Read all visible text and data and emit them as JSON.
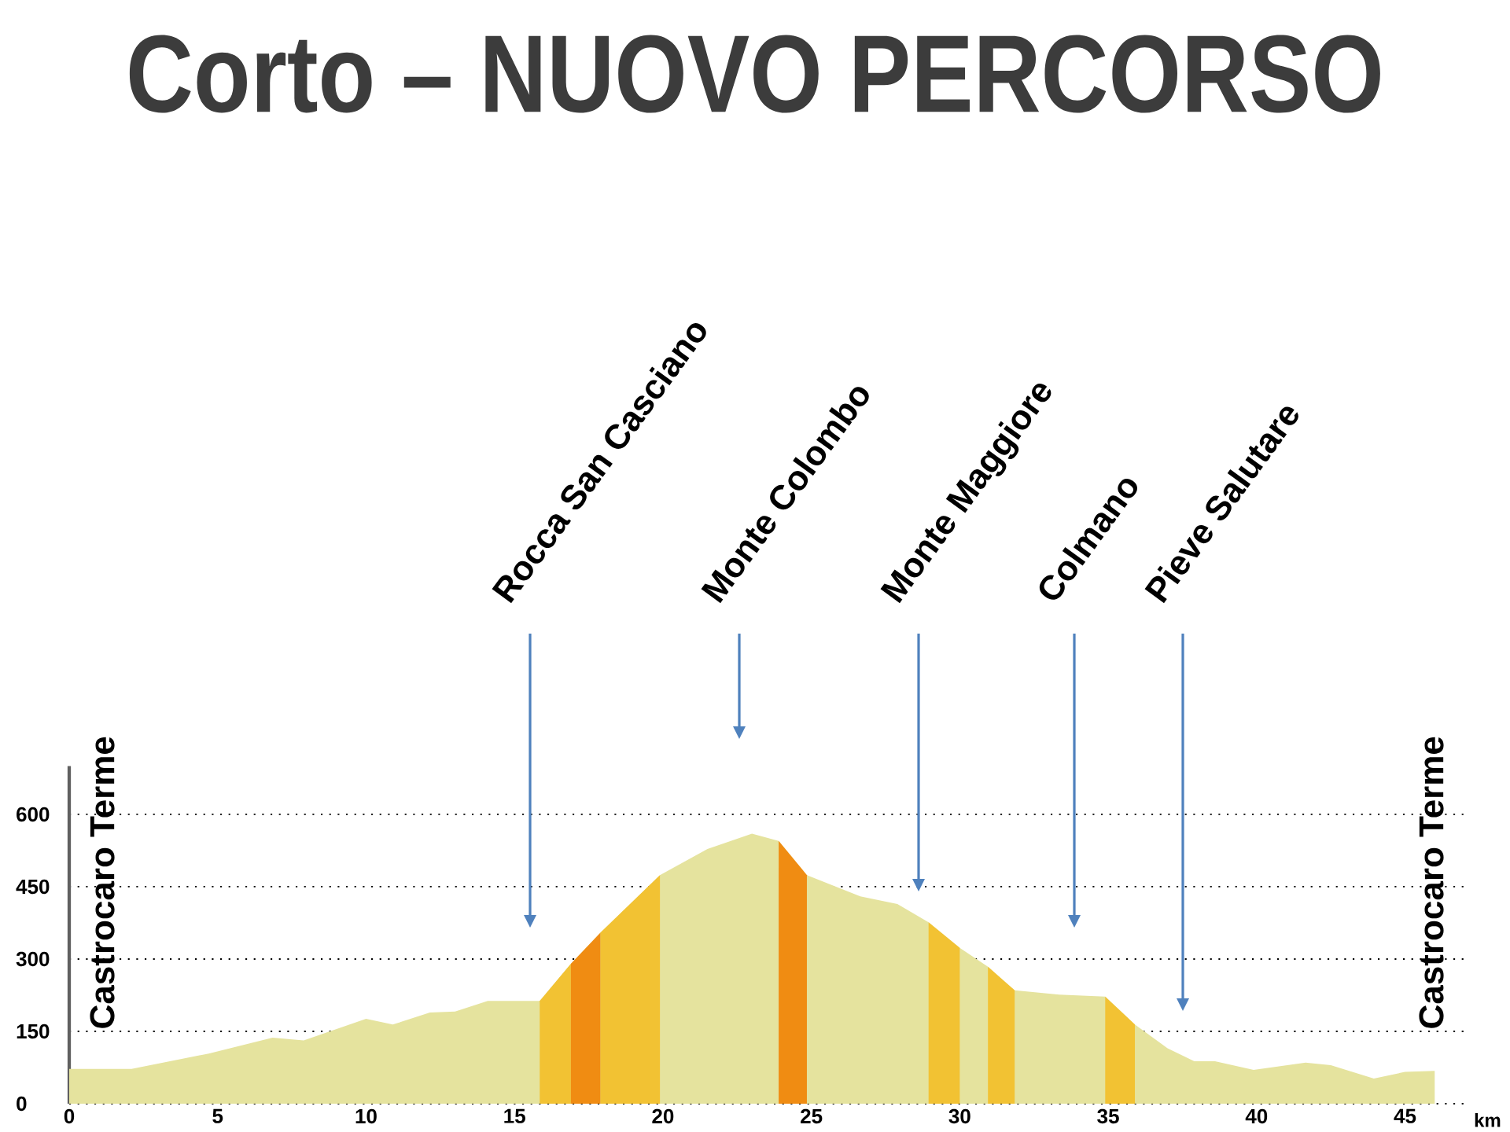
{
  "chart_data": {
    "type": "area",
    "title": "Corto – NUOVO PERCORSO",
    "xlabel": "km",
    "xlim": [
      0,
      47
    ],
    "ylim": [
      0,
      700
    ],
    "xticks": [
      0,
      5,
      10,
      15,
      20,
      25,
      30,
      35,
      40,
      45
    ],
    "yticks": [
      0,
      150,
      300,
      450,
      600
    ],
    "grid": "y",
    "series": [
      {
        "color": "#e5e39e",
        "x": [
          0,
          2.1,
          4.7,
          6.85,
          7.9,
          10.0,
          10.9,
          12.15,
          13.0,
          14.1,
          15.85,
          16.9,
          17.9,
          19.9,
          21.5,
          23.0,
          23.9,
          24.85,
          26.65,
          27.9,
          28.95,
          30.0,
          30.95,
          31.85,
          33.35,
          34.9,
          35.9,
          37.0,
          37.9,
          38.6,
          39.9,
          41.65,
          42.5,
          43.95,
          45.0,
          46.0
        ],
        "values": [
          72,
          72,
          104,
          137,
          131,
          176,
          164,
          189,
          191,
          213,
          213,
          290,
          355,
          474,
          528,
          560,
          545,
          474,
          430,
          414,
          376,
          323,
          284,
          235,
          226,
          222,
          164,
          115,
          88,
          88,
          70,
          85,
          80,
          52,
          66,
          68
        ]
      },
      {
        "color": "#f2c233",
        "x": [
          15.85,
          16.9
        ],
        "values": [
          213,
          290
        ]
      },
      {
        "color": "#f08c12",
        "x": [
          16.9,
          17.9
        ],
        "values": [
          290,
          355
        ]
      },
      {
        "color": "#f2c233",
        "x": [
          17.9,
          19.9
        ],
        "values": [
          355,
          474
        ]
      },
      {
        "color": "#f08c12",
        "x": [
          23.9,
          24.85
        ],
        "values": [
          545,
          474
        ]
      },
      {
        "color": "#f2c233",
        "x": [
          28.95,
          30.0
        ],
        "values": [
          376,
          323
        ]
      },
      {
        "color": "#f2c233",
        "x": [
          30.95,
          31.85
        ],
        "values": [
          284,
          235
        ]
      },
      {
        "color": "#f2c233",
        "x": [
          34.9,
          35.9
        ],
        "values": [
          222,
          164
        ]
      }
    ],
    "annotations": [
      "Rocca San Casciano",
      "Monte Colombo",
      "Monte Maggiore",
      "Colmano",
      "Pieve Salutare",
      "Castrocaro Terme",
      "Castrocaro Terme"
    ]
  }
}
